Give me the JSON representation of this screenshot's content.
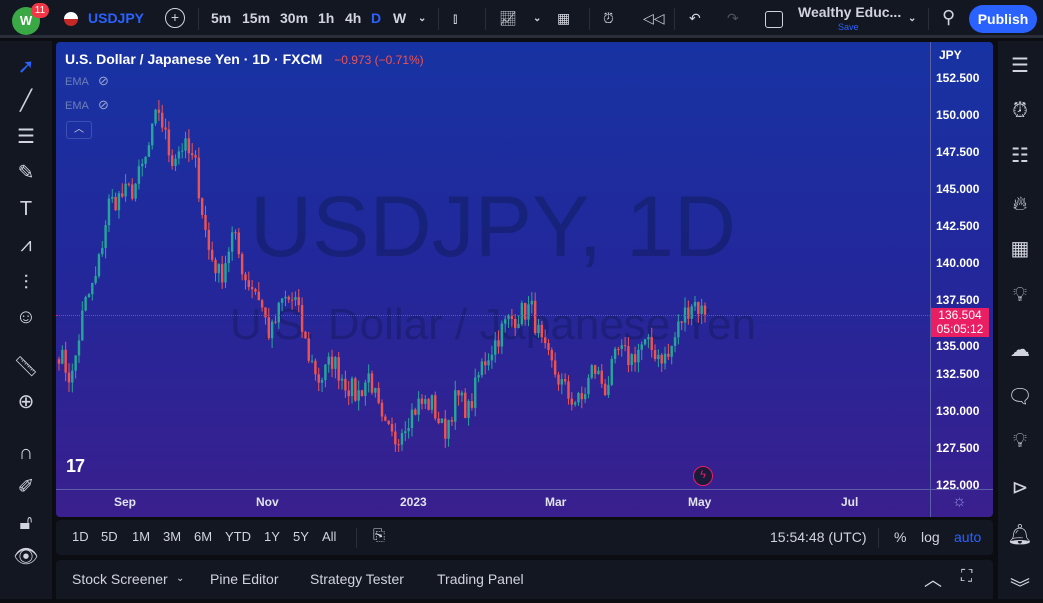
{
  "topbar": {
    "notification_count": "11",
    "symbol": "USDJPY",
    "intervals": [
      "5m",
      "15m",
      "30m",
      "1h",
      "4h",
      "D",
      "W"
    ],
    "active_interval": "D",
    "layout_name": "Wealthy Educ...",
    "save_label": "Save",
    "publish_label": "Publish"
  },
  "legend": {
    "title": "U.S. Dollar / Japanese Yen · 1D · FXCM",
    "change": "−0.973 (−0.71%)",
    "indicators": [
      "EMA",
      "EMA"
    ]
  },
  "watermark": {
    "line1": "USDJPY, 1D",
    "line2": "U.S. Dollar / Japanese Yen"
  },
  "price_axis": {
    "currency": "JPY",
    "ticks": [
      "152.500",
      "150.000",
      "147.500",
      "145.000",
      "142.500",
      "140.000",
      "137.500",
      "135.000",
      "132.500",
      "130.000",
      "127.500",
      "125.000"
    ],
    "last_price": "136.504",
    "countdown": "05:05:12"
  },
  "time_axis": {
    "ticks": [
      "Sep",
      "Nov",
      "2023",
      "Mar",
      "May",
      "Jul"
    ]
  },
  "range_bar": {
    "ranges": [
      "1D",
      "5D",
      "1M",
      "3M",
      "6M",
      "YTD",
      "1Y",
      "5Y",
      "All"
    ],
    "clock": "15:54:48 (UTC)",
    "percent": "%",
    "log": "log",
    "auto": "auto"
  },
  "bottom_panel": {
    "tabs": [
      "Stock Screener",
      "Pine Editor",
      "Strategy Tester",
      "Trading Panel"
    ]
  },
  "colors": {
    "up": "#26a69a",
    "down": "#ef5350",
    "accent": "#2962ff",
    "last_price": "#e91e63"
  },
  "chart_data": {
    "type": "candlestick",
    "ylim": [
      125,
      153
    ],
    "x_start": "2022-08",
    "x_end": "2023-05",
    "close_keypoints": [
      134,
      132,
      137,
      139,
      144,
      144.5,
      145,
      147,
      150.5,
      147,
      148,
      146.5,
      141,
      139,
      142,
      139,
      138,
      135,
      137.5,
      137.5,
      134,
      132,
      133.5,
      132,
      131,
      132.5,
      129,
      128,
      129.5,
      130.5,
      130.5,
      128.5,
      131,
      130,
      133,
      134.5,
      136,
      136.5,
      137,
      134,
      132.5,
      131,
      130.5,
      133,
      131.5,
      134,
      133.5,
      134.5,
      134,
      133.5,
      136,
      137.5,
      136.5
    ]
  }
}
